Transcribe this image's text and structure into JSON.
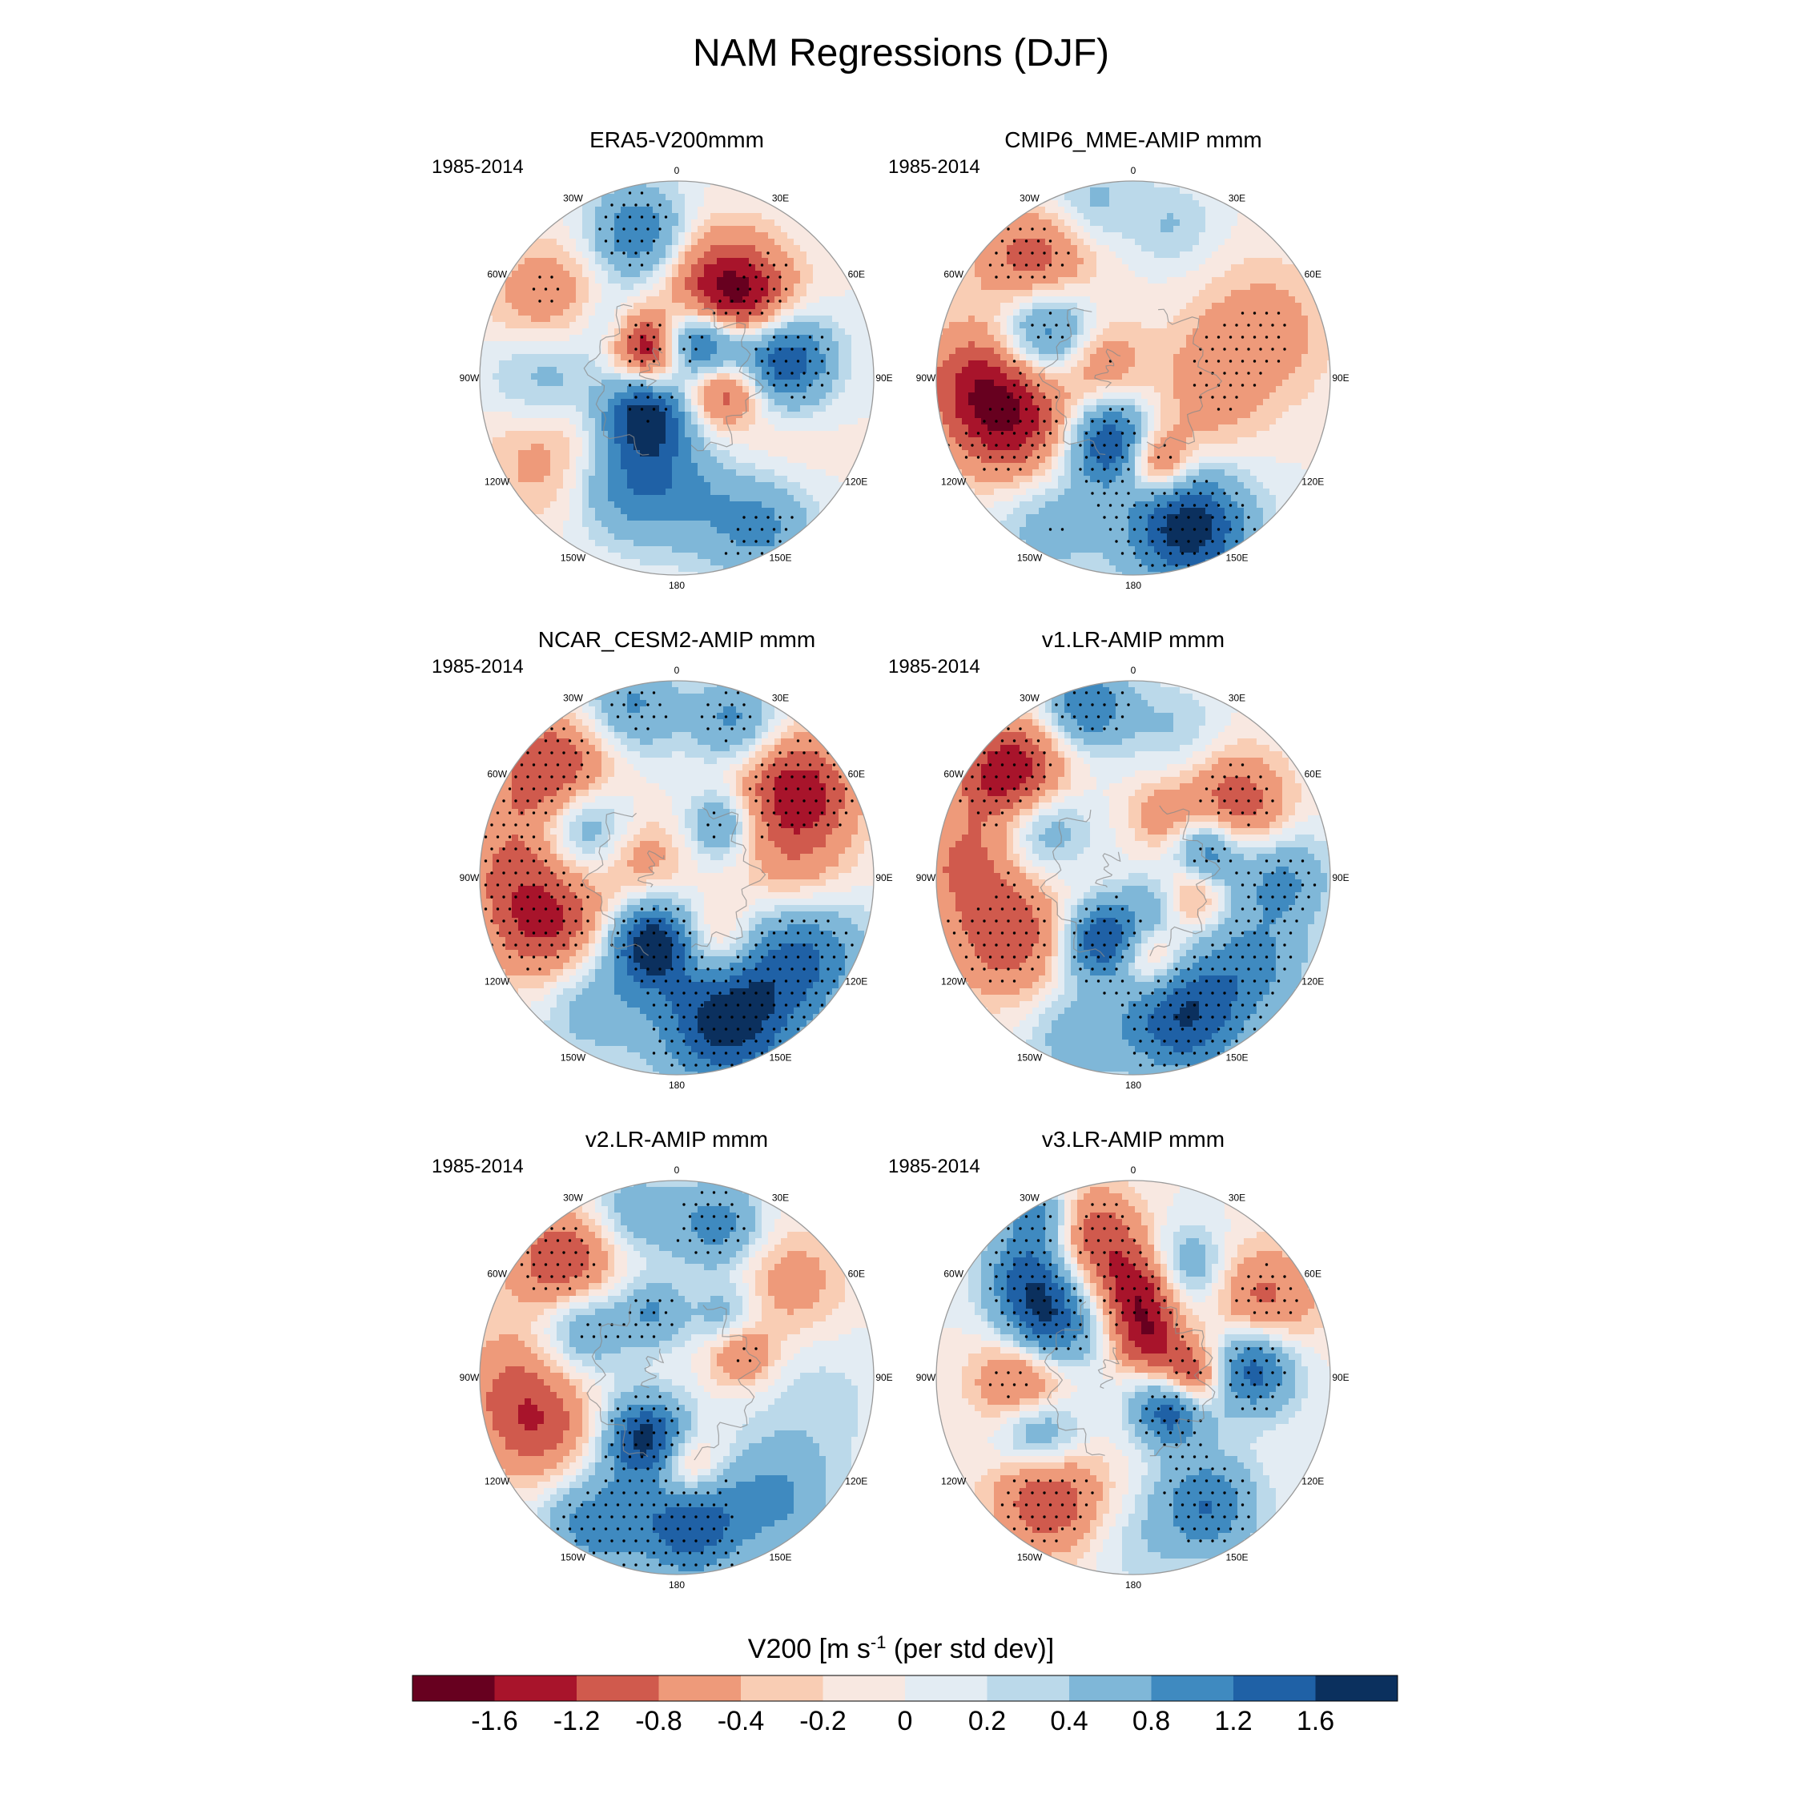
{
  "chart_data": {
    "type": "heatmap",
    "title": "NAM Regressions (DJF)",
    "projection": "north-polar-stereographic",
    "period": "1985-2014",
    "longitude_labels": [
      "180",
      "150E",
      "120E",
      "90E",
      "60E",
      "30E",
      "0",
      "30W",
      "60W",
      "90W",
      "120W",
      "150W"
    ],
    "colorbar": {
      "label_main": "V200 [m s",
      "label_sup": "-1",
      "label_tail": " (per std dev)]",
      "levels": [
        "-1.6",
        "-1.2",
        "-0.8",
        "-0.4",
        "-0.2",
        "0",
        "0.2",
        "0.4",
        "0.8",
        "1.2",
        "1.6"
      ],
      "colors": [
        "#67001f",
        "#a8142b",
        "#d05a4d",
        "#ee9a7a",
        "#f9cdb4",
        "#f8e8e1",
        "#e3ecf3",
        "#bbd9ea",
        "#7fb7d8",
        "#3f8ac0",
        "#1f61a6",
        "#0b305e"
      ],
      "stipple_meaning": "significant"
    },
    "panels": [
      {
        "title": "ERA5-V200mmm",
        "period": "1985-2014",
        "blobs": [
          {
            "lon": 180,
            "r": 0.55,
            "v": 0.8,
            "s": 0.22
          },
          {
            "lon": 150,
            "r": 0.85,
            "v": 1.0,
            "s": 0.2,
            "sig": true
          },
          {
            "lon": 135,
            "r": 0.6,
            "v": -0.3,
            "s": 0.25
          },
          {
            "lon": 210,
            "r": 0.6,
            "v": 0.9,
            "s": 0.2
          },
          {
            "lon": 240,
            "r": 0.7,
            "v": -0.8,
            "s": 0.25
          },
          {
            "lon": 270,
            "r": 0.65,
            "v": 0.9,
            "s": 0.22
          },
          {
            "lon": 300,
            "r": 0.75,
            "v": -0.8,
            "s": 0.22,
            "sig": true
          },
          {
            "lon": 310,
            "r": 0.45,
            "v": 0.4,
            "s": 0.12
          },
          {
            "lon": 345,
            "r": 0.75,
            "v": 1.2,
            "s": 0.18,
            "sig": true
          },
          {
            "lon": 15,
            "r": 0.55,
            "v": -0.6,
            "s": 0.2
          },
          {
            "lon": 40,
            "r": 0.5,
            "v": -1.6,
            "s": 0.2,
            "sig": true
          },
          {
            "lon": 80,
            "r": 0.55,
            "v": 1.8,
            "s": 0.17,
            "sig": true
          },
          {
            "lon": 100,
            "r": 0.3,
            "v": -0.8,
            "s": 0.12
          },
          {
            "lon": 60,
            "r": 0.3,
            "v": 0.8,
            "s": 0.12
          },
          {
            "lon": 220,
            "r": 0.25,
            "v": 1.8,
            "s": 0.15,
            "sig": true
          },
          {
            "lon": 320,
            "r": 0.2,
            "v": -1.8,
            "s": 0.13,
            "sig": true
          },
          {
            "lon": 20,
            "r": 0.2,
            "v": 1.7,
            "s": 0.13,
            "sig": true
          },
          {
            "lon": 120,
            "r": 0.2,
            "v": -0.5,
            "s": 0.12
          }
        ]
      },
      {
        "title": "CMIP6_MME-AMIP  mmm",
        "period": "1985-2014",
        "blobs": [
          {
            "lon": 160,
            "r": 0.8,
            "v": 1.9,
            "s": 0.22,
            "sig": true
          },
          {
            "lon": 210,
            "r": 0.85,
            "v": 0.6,
            "s": 0.2,
            "sig": true
          },
          {
            "lon": 250,
            "r": 0.65,
            "v": -1.4,
            "s": 0.22,
            "sig": true
          },
          {
            "lon": 270,
            "r": 0.8,
            "v": -1.0,
            "s": 0.2
          },
          {
            "lon": 300,
            "r": 0.5,
            "v": 1.5,
            "s": 0.18,
            "sig": true
          },
          {
            "lon": 320,
            "r": 0.75,
            "v": -1.2,
            "s": 0.22,
            "sig": true
          },
          {
            "lon": 345,
            "r": 0.9,
            "v": 0.6,
            "s": 0.18,
            "sig": true
          },
          {
            "lon": 15,
            "r": 0.8,
            "v": 0.4,
            "s": 0.15,
            "sig": true
          },
          {
            "lon": 70,
            "r": 0.7,
            "v": -0.6,
            "s": 0.25,
            "sig": true
          },
          {
            "lon": 90,
            "r": 0.4,
            "v": -0.4,
            "s": 0.2,
            "sig": true
          },
          {
            "lon": 130,
            "r": 0.45,
            "v": -0.3,
            "s": 0.2
          },
          {
            "lon": 200,
            "r": 0.35,
            "v": 1.7,
            "s": 0.15,
            "sig": true
          },
          {
            "lon": 165,
            "r": 0.45,
            "v": -1.3,
            "s": 0.12,
            "sig": true
          },
          {
            "lon": 300,
            "r": 0.2,
            "v": -0.8,
            "s": 0.15,
            "sig": true
          }
        ]
      },
      {
        "title": "NCAR_CESM2-AMIP  mmm",
        "period": "1985-2014",
        "blobs": [
          {
            "lon": 160,
            "r": 0.75,
            "v": 1.9,
            "s": 0.25,
            "sig": true
          },
          {
            "lon": 120,
            "r": 0.75,
            "v": 1.2,
            "s": 0.22,
            "sig": true
          },
          {
            "lon": 215,
            "r": 0.75,
            "v": 0.7,
            "s": 0.2
          },
          {
            "lon": 250,
            "r": 0.7,
            "v": -1.3,
            "s": 0.22,
            "sig": true
          },
          {
            "lon": 275,
            "r": 0.85,
            "v": -0.6,
            "s": 0.2,
            "sig": true
          },
          {
            "lon": 300,
            "r": 0.55,
            "v": 1.2,
            "s": 0.17,
            "sig": true
          },
          {
            "lon": 310,
            "r": 0.8,
            "v": -1.4,
            "s": 0.22,
            "sig": true
          },
          {
            "lon": 345,
            "r": 0.9,
            "v": 0.9,
            "s": 0.18,
            "sig": true
          },
          {
            "lon": 20,
            "r": 0.85,
            "v": 0.9,
            "s": 0.15,
            "sig": true
          },
          {
            "lon": 55,
            "r": 0.75,
            "v": -1.5,
            "s": 0.2,
            "sig": true
          },
          {
            "lon": 90,
            "r": 0.6,
            "v": -0.6,
            "s": 0.2
          },
          {
            "lon": 200,
            "r": 0.35,
            "v": 1.9,
            "s": 0.15,
            "sig": true
          },
          {
            "lon": 150,
            "r": 0.4,
            "v": -0.9,
            "s": 0.15,
            "sig": true
          },
          {
            "lon": 40,
            "r": 0.35,
            "v": 0.9,
            "s": 0.12,
            "sig": true
          },
          {
            "lon": 300,
            "r": 0.2,
            "v": -0.6,
            "s": 0.15,
            "sig": true
          }
        ]
      },
      {
        "title": "v1.LR-AMIP  mmm",
        "period": "1985-2014",
        "blobs": [
          {
            "lon": 160,
            "r": 0.75,
            "v": 1.6,
            "s": 0.22,
            "sig": true
          },
          {
            "lon": 125,
            "r": 0.75,
            "v": 0.8,
            "s": 0.2,
            "sig": true
          },
          {
            "lon": 200,
            "r": 0.85,
            "v": 0.6,
            "s": 0.18
          },
          {
            "lon": 245,
            "r": 0.7,
            "v": -1.1,
            "s": 0.22,
            "sig": true
          },
          {
            "lon": 275,
            "r": 0.85,
            "v": -0.8,
            "s": 0.18
          },
          {
            "lon": 300,
            "r": 0.55,
            "v": 1.0,
            "s": 0.17,
            "sig": true
          },
          {
            "lon": 310,
            "r": 0.8,
            "v": -1.7,
            "s": 0.2,
            "sig": true
          },
          {
            "lon": 345,
            "r": 0.9,
            "v": 1.2,
            "s": 0.16,
            "sig": true
          },
          {
            "lon": 15,
            "r": 0.8,
            "v": 0.4,
            "s": 0.15
          },
          {
            "lon": 55,
            "r": 0.65,
            "v": -1.1,
            "s": 0.18,
            "sig": true
          },
          {
            "lon": 90,
            "r": 0.75,
            "v": 0.9,
            "s": 0.17,
            "sig": true
          },
          {
            "lon": 205,
            "r": 0.35,
            "v": 1.8,
            "s": 0.14,
            "sig": true
          },
          {
            "lon": 170,
            "r": 0.4,
            "v": -1.0,
            "s": 0.13,
            "sig": true
          },
          {
            "lon": 70,
            "r": 0.4,
            "v": 1.2,
            "s": 0.12,
            "sig": true
          },
          {
            "lon": 110,
            "r": 0.3,
            "v": -0.9,
            "s": 0.12,
            "sig": true
          },
          {
            "lon": 25,
            "r": 0.35,
            "v": -0.6,
            "s": 0.12
          },
          {
            "lon": 140,
            "r": 0.2,
            "v": 0.8,
            "s": 0.12
          }
        ]
      },
      {
        "title": "v2.LR-AMIP  mmm",
        "period": "1985-2014",
        "blobs": [
          {
            "lon": 175,
            "r": 0.75,
            "v": 1.5,
            "s": 0.2,
            "sig": true
          },
          {
            "lon": 140,
            "r": 0.8,
            "v": 0.8,
            "s": 0.2
          },
          {
            "lon": 210,
            "r": 0.85,
            "v": 1.0,
            "s": 0.18,
            "sig": true
          },
          {
            "lon": 250,
            "r": 0.75,
            "v": -1.0,
            "s": 0.2
          },
          {
            "lon": 270,
            "r": 0.85,
            "v": -0.6,
            "s": 0.2
          },
          {
            "lon": 300,
            "r": 0.55,
            "v": 1.0,
            "s": 0.17,
            "sig": true
          },
          {
            "lon": 315,
            "r": 0.8,
            "v": -1.3,
            "s": 0.2,
            "sig": true
          },
          {
            "lon": 345,
            "r": 0.85,
            "v": 0.7,
            "s": 0.16
          },
          {
            "lon": 15,
            "r": 0.8,
            "v": 1.0,
            "s": 0.16,
            "sig": true
          },
          {
            "lon": 50,
            "r": 0.75,
            "v": -0.6,
            "s": 0.2
          },
          {
            "lon": 100,
            "r": 0.7,
            "v": 0.3,
            "s": 0.25
          },
          {
            "lon": 205,
            "r": 0.35,
            "v": 1.9,
            "s": 0.15,
            "sig": true
          },
          {
            "lon": 175,
            "r": 0.45,
            "v": -1.1,
            "s": 0.13,
            "sig": true
          },
          {
            "lon": 340,
            "r": 0.35,
            "v": 0.8,
            "s": 0.12,
            "sig": true
          },
          {
            "lon": 40,
            "r": 0.4,
            "v": 0.7,
            "s": 0.12,
            "sig": true
          },
          {
            "lon": 70,
            "r": 0.35,
            "v": -0.9,
            "s": 0.12,
            "sig": true
          }
        ]
      },
      {
        "title": "v3.LR-AMIP  mmm",
        "period": "1985-2014",
        "blobs": [
          {
            "lon": 150,
            "r": 0.75,
            "v": 1.2,
            "s": 0.18,
            "sig": true
          },
          {
            "lon": 180,
            "r": 0.85,
            "v": 0.3,
            "s": 0.18
          },
          {
            "lon": 215,
            "r": 0.75,
            "v": -1.2,
            "s": 0.2,
            "sig": true
          },
          {
            "lon": 240,
            "r": 0.55,
            "v": 1.1,
            "s": 0.15,
            "sig": true
          },
          {
            "lon": 270,
            "r": 0.55,
            "v": -1.3,
            "s": 0.17,
            "sig": true
          },
          {
            "lon": 300,
            "r": 0.5,
            "v": 1.6,
            "s": 0.17,
            "sig": true
          },
          {
            "lon": 315,
            "r": 0.75,
            "v": 1.2,
            "s": 0.16,
            "sig": true
          },
          {
            "lon": 345,
            "r": 0.75,
            "v": -1.1,
            "s": 0.17,
            "sig": true
          },
          {
            "lon": 5,
            "r": 0.45,
            "v": -1.6,
            "s": 0.15,
            "sig": true
          },
          {
            "lon": 25,
            "r": 0.6,
            "v": 1.0,
            "s": 0.15,
            "sig": true
          },
          {
            "lon": 60,
            "r": 0.75,
            "v": -1.0,
            "s": 0.2,
            "sig": true
          },
          {
            "lon": 85,
            "r": 0.6,
            "v": 1.6,
            "s": 0.16,
            "sig": true
          },
          {
            "lon": 130,
            "r": 0.25,
            "v": 1.6,
            "s": 0.13,
            "sig": true
          },
          {
            "lon": 90,
            "r": 0.3,
            "v": -1.5,
            "s": 0.12,
            "sig": true
          },
          {
            "lon": 20,
            "r": 0.2,
            "v": -1.2,
            "s": 0.12
          },
          {
            "lon": 330,
            "r": 0.95,
            "v": 1.0,
            "s": 0.12,
            "sig": true
          }
        ]
      }
    ]
  }
}
